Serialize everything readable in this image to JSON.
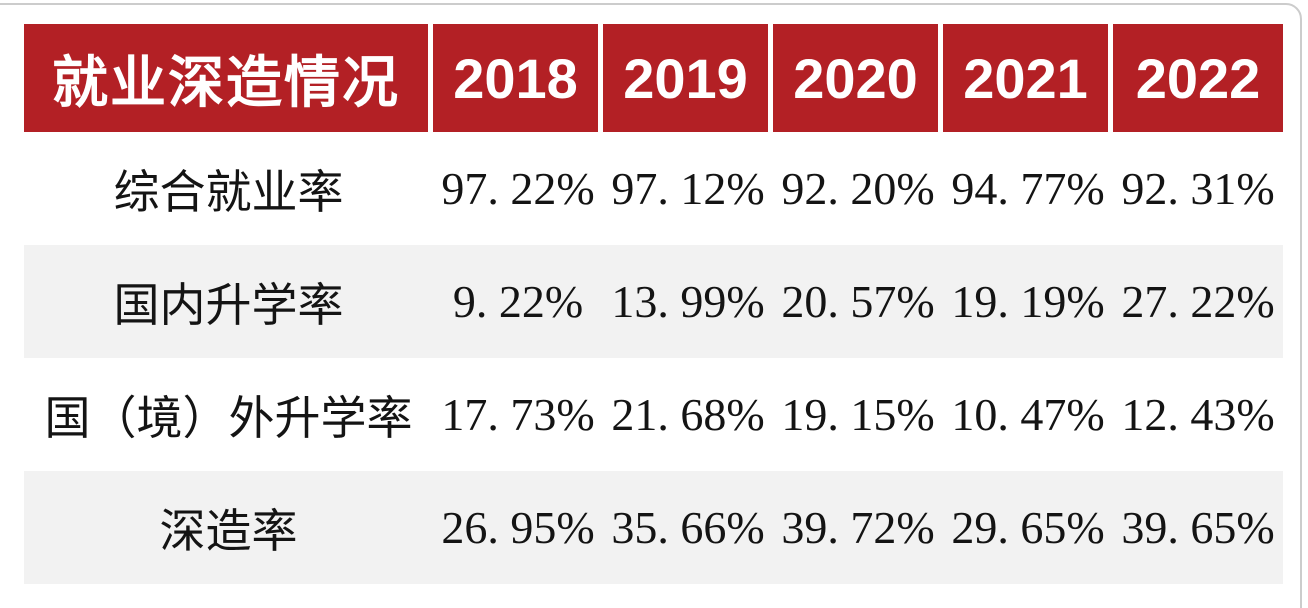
{
  "page": {
    "background": "#ffffff",
    "frame_border_color": "#cccccc"
  },
  "colors": {
    "header_bg": "#b32025",
    "header_text": "#ffffff",
    "row_bg": "#ffffff",
    "row_alt_bg": "#f2f2f2",
    "body_text": "#141414"
  },
  "table": {
    "header": {
      "title": "就业深造情况",
      "years": [
        "2018",
        "2019",
        "2020",
        "2021",
        "2022"
      ]
    },
    "rows": [
      {
        "label": "综合就业率",
        "values": [
          "97. 22%",
          "97. 12%",
          "92. 20%",
          "94. 77%",
          "92. 31%"
        ],
        "alt": false
      },
      {
        "label": "国内升学率",
        "values": [
          "9. 22%",
          "13. 99%",
          "20. 57%",
          "19. 19%",
          "27. 22%"
        ],
        "alt": true
      },
      {
        "label": "国（境）外升学率",
        "values": [
          "17. 73%",
          "21. 68%",
          "19. 15%",
          "10. 47%",
          "12. 43%"
        ],
        "alt": false
      },
      {
        "label": "深造率",
        "values": [
          "26. 95%",
          "35. 66%",
          "39. 72%",
          "29. 65%",
          "39. 65%"
        ],
        "alt": true
      }
    ]
  },
  "chart_data": {
    "type": "table",
    "title": "就业深造情况",
    "categories": [
      "2018",
      "2019",
      "2020",
      "2021",
      "2022"
    ],
    "series": [
      {
        "name": "综合就业率",
        "values": [
          97.22,
          97.12,
          92.2,
          94.77,
          92.31
        ]
      },
      {
        "name": "国内升学率",
        "values": [
          9.22,
          13.99,
          20.57,
          19.19,
          27.22
        ]
      },
      {
        "name": "国（境）外升学率",
        "values": [
          17.73,
          21.68,
          19.15,
          10.47,
          12.43
        ]
      },
      {
        "name": "深造率",
        "values": [
          26.95,
          35.66,
          39.72,
          29.65,
          39.65
        ]
      }
    ],
    "unit": "%",
    "layout": {
      "header_fill": "#b32025",
      "alt_row_fill": "#f2f2f2",
      "grid": false
    }
  }
}
